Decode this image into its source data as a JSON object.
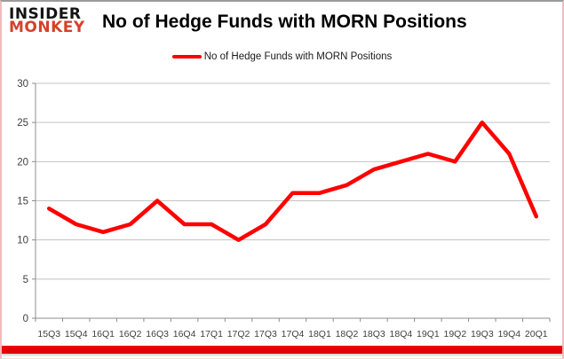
{
  "branding": {
    "logo_line1": "INSIDER",
    "logo_line2": "MONKEY",
    "logo_color_primary": "#141414",
    "logo_color_secondary": "#d2422a"
  },
  "header": {
    "title": "No of Hedge Funds with MORN Positions"
  },
  "legend": {
    "label": "No of Hedge Funds with MORN Positions",
    "line_color": "#ff0000"
  },
  "chart_data": {
    "type": "line",
    "title": "No of Hedge Funds with MORN Positions",
    "categories": [
      "15Q3",
      "15Q4",
      "16Q1",
      "16Q2",
      "16Q3",
      "16Q4",
      "17Q1",
      "17Q2",
      "17Q3",
      "17Q4",
      "18Q1",
      "18Q2",
      "18Q3",
      "18Q4",
      "19Q1",
      "19Q2",
      "19Q3",
      "19Q4",
      "20Q1"
    ],
    "series": [
      {
        "name": "No of Hedge Funds with MORN Positions",
        "values": [
          14,
          12,
          11,
          12,
          15,
          12,
          12,
          10,
          12,
          16,
          16,
          17,
          19,
          20,
          21,
          20,
          25,
          21,
          13
        ],
        "color": "#ff0000"
      }
    ],
    "xlabel": "",
    "ylabel": "",
    "ylim": [
      0,
      30
    ],
    "yticks": [
      0,
      5,
      10,
      15,
      20,
      25,
      30
    ],
    "grid": true,
    "legend_position": "top-center",
    "gridline_color": "#c3c3c3",
    "axis_color": "#8c8c8c",
    "tick_label_color": "#3f3f3f"
  },
  "footer": {
    "bar_color": "#f20000"
  }
}
